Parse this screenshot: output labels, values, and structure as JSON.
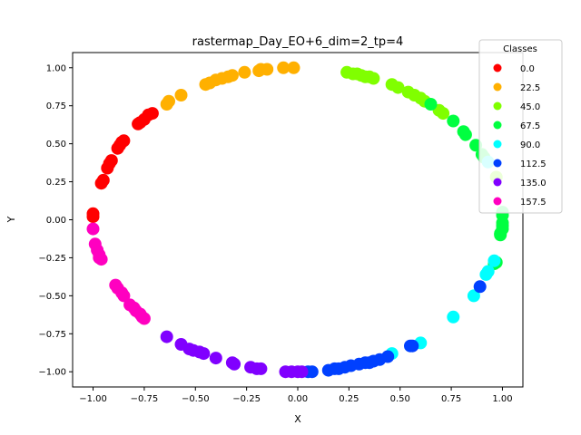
{
  "chart_data": {
    "type": "scatter",
    "title": "rastermap_Day_EO+6_dim=2_tp=4",
    "xlabel": "X",
    "ylabel": "Y",
    "xlim": [
      -1.1,
      1.1
    ],
    "ylim": [
      -1.1,
      1.1
    ],
    "xticks": [
      -1.0,
      -0.75,
      -0.5,
      -0.25,
      0.0,
      0.25,
      0.5,
      0.75,
      1.0
    ],
    "xtick_labels": [
      "−1.00",
      "−0.75",
      "−0.50",
      "−0.25",
      "0.00",
      "0.25",
      "0.50",
      "0.75",
      "1.00"
    ],
    "yticks": [
      -1.0,
      -0.75,
      -0.5,
      -0.25,
      0.0,
      0.25,
      0.5,
      0.75,
      1.0
    ],
    "ytick_labels": [
      "−1.00",
      "−0.75",
      "−0.50",
      "−0.25",
      "0.00",
      "0.25",
      "0.50",
      "0.75",
      "1.00"
    ],
    "grid": false,
    "legend": {
      "title": "Classes",
      "placement": "top-right"
    },
    "series": [
      {
        "name": "0.0",
        "color": "#ff0000",
        "points": [
          [
            -1.0,
            0.04
          ],
          [
            -1.0,
            0.02
          ],
          [
            -0.96,
            0.24
          ],
          [
            -0.95,
            0.26
          ],
          [
            -0.93,
            0.34
          ],
          [
            -0.92,
            0.37
          ],
          [
            -0.91,
            0.39
          ],
          [
            -0.88,
            0.47
          ],
          [
            -0.87,
            0.49
          ],
          [
            -0.86,
            0.51
          ],
          [
            -0.85,
            0.52
          ],
          [
            -0.78,
            0.63
          ],
          [
            -0.77,
            0.64
          ],
          [
            -0.75,
            0.66
          ],
          [
            -0.73,
            0.69
          ],
          [
            -0.71,
            0.7
          ]
        ]
      },
      {
        "name": "22.5",
        "color": "#ffb000",
        "points": [
          [
            -0.64,
            0.76
          ],
          [
            -0.63,
            0.78
          ],
          [
            -0.57,
            0.82
          ],
          [
            -0.45,
            0.89
          ],
          [
            -0.43,
            0.9
          ],
          [
            -0.4,
            0.92
          ],
          [
            -0.37,
            0.93
          ],
          [
            -0.34,
            0.94
          ],
          [
            -0.32,
            0.95
          ],
          [
            -0.26,
            0.97
          ],
          [
            -0.19,
            0.98
          ],
          [
            -0.18,
            0.99
          ],
          [
            -0.15,
            0.99
          ],
          [
            -0.07,
            1.0
          ],
          [
            -0.02,
            1.0
          ]
        ]
      },
      {
        "name": "45.0",
        "color": "#80ff00",
        "points": [
          [
            0.24,
            0.97
          ],
          [
            0.27,
            0.96
          ],
          [
            0.29,
            0.96
          ],
          [
            0.31,
            0.95
          ],
          [
            0.33,
            0.94
          ],
          [
            0.35,
            0.94
          ],
          [
            0.37,
            0.93
          ],
          [
            0.46,
            0.89
          ],
          [
            0.49,
            0.87
          ],
          [
            0.54,
            0.84
          ],
          [
            0.57,
            0.82
          ],
          [
            0.6,
            0.8
          ],
          [
            0.62,
            0.78
          ],
          [
            0.69,
            0.72
          ],
          [
            0.71,
            0.7
          ],
          [
            0.97,
            0.28
          ]
        ]
      },
      {
        "name": "67.5",
        "color": "#00ff40",
        "points": [
          [
            0.65,
            0.76
          ],
          [
            0.76,
            0.65
          ],
          [
            0.81,
            0.58
          ],
          [
            0.82,
            0.56
          ],
          [
            0.87,
            0.49
          ],
          [
            0.9,
            0.43
          ],
          [
            0.91,
            0.41
          ],
          [
            1.0,
            0.05
          ],
          [
            1.0,
            0.03
          ],
          [
            1.0,
            -0.02
          ],
          [
            1.0,
            -0.04
          ],
          [
            1.0,
            -0.06
          ],
          [
            0.99,
            -0.09
          ],
          [
            0.99,
            -0.1
          ],
          [
            0.97,
            -0.28
          ],
          [
            0.96,
            -0.29
          ]
        ]
      },
      {
        "name": "90.0",
        "color": "#00ffff",
        "points": [
          [
            0.93,
            0.38
          ],
          [
            0.92,
            -0.36
          ],
          [
            0.93,
            -0.34
          ],
          [
            0.96,
            -0.27
          ],
          [
            0.86,
            -0.5
          ],
          [
            0.76,
            -0.64
          ],
          [
            0.6,
            -0.81
          ],
          [
            0.46,
            -0.88
          ]
        ]
      },
      {
        "name": "112.5",
        "color": "#0040ff",
        "points": [
          [
            0.89,
            -0.44
          ],
          [
            0.56,
            -0.83
          ],
          [
            0.55,
            -0.83
          ],
          [
            0.44,
            -0.9
          ],
          [
            0.4,
            -0.92
          ],
          [
            0.37,
            -0.93
          ],
          [
            0.35,
            -0.94
          ],
          [
            0.33,
            -0.94
          ],
          [
            0.3,
            -0.95
          ],
          [
            0.26,
            -0.96
          ],
          [
            0.23,
            -0.97
          ],
          [
            0.2,
            -0.98
          ],
          [
            0.18,
            -0.98
          ],
          [
            0.15,
            -0.99
          ],
          [
            0.07,
            -1.0
          ],
          [
            0.05,
            -1.0
          ]
        ]
      },
      {
        "name": "135.0",
        "color": "#8000ff",
        "points": [
          [
            0.02,
            -1.0
          ],
          [
            0.0,
            -1.0
          ],
          [
            -0.03,
            -1.0
          ],
          [
            -0.06,
            -1.0
          ],
          [
            -0.18,
            -0.98
          ],
          [
            -0.2,
            -0.98
          ],
          [
            -0.23,
            -0.97
          ],
          [
            -0.31,
            -0.95
          ],
          [
            -0.32,
            -0.94
          ],
          [
            -0.4,
            -0.91
          ],
          [
            -0.46,
            -0.88
          ],
          [
            -0.48,
            -0.87
          ],
          [
            -0.51,
            -0.86
          ],
          [
            -0.53,
            -0.85
          ],
          [
            -0.57,
            -0.82
          ],
          [
            -0.64,
            -0.77
          ]
        ]
      },
      {
        "name": "157.5",
        "color": "#ff00c0",
        "points": [
          [
            -1.0,
            -0.06
          ],
          [
            -0.99,
            -0.16
          ],
          [
            -0.98,
            -0.2
          ],
          [
            -0.97,
            -0.23
          ],
          [
            -0.97,
            -0.25
          ],
          [
            -0.96,
            -0.26
          ],
          [
            -0.89,
            -0.43
          ],
          [
            -0.88,
            -0.45
          ],
          [
            -0.86,
            -0.48
          ],
          [
            -0.85,
            -0.5
          ],
          [
            -0.82,
            -0.56
          ],
          [
            -0.8,
            -0.58
          ],
          [
            -0.79,
            -0.6
          ],
          [
            -0.77,
            -0.62
          ],
          [
            -0.76,
            -0.64
          ],
          [
            -0.75,
            -0.65
          ]
        ]
      }
    ]
  }
}
